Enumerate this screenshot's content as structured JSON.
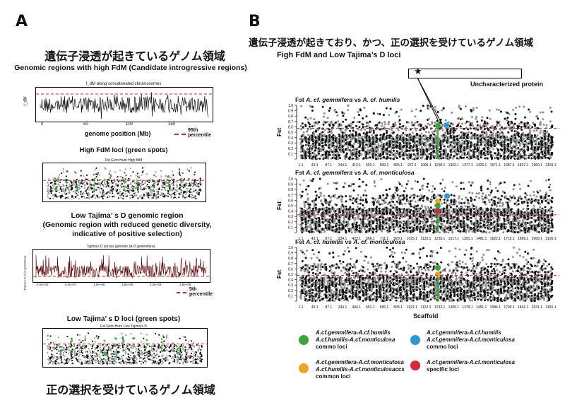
{
  "panelA": {
    "letter": "A",
    "jp_title_top": "遺伝子浸透が起きているゲノム領域",
    "en_sub_top": "Genomic regions with high FdM (Candidate introgressive regions)",
    "fdm_plot": {
      "title": "f_dM along concatenated chromosomes",
      "ylabel": "f_dM",
      "xlabel": "genome position (Mb)",
      "xticks": [
        "0",
        "50",
        "100",
        "150"
      ],
      "legend_label": "95th percentile"
    },
    "high_fdm_title": "High FdM loci (green spots)",
    "high_fdm_plot_title": "Fst Gem Hum High fdM",
    "low_tajima_title": "Low Tajima’ s D genomic region",
    "low_tajima_sub1": "(Genomic region with reduced genetic diversity,",
    "low_tajima_sub2": "indicative of positive selection)",
    "tajima_plot": {
      "title": "Tajima's D across genome (A.cf.gemmifera)",
      "ylabel": "Tajima's D (A.cf.gemmifera)",
      "xticks": [
        "0.0e+00",
        "5.0e+07",
        "1.0e+08",
        "1.5e+08",
        "2.0e+08",
        "2.5e+08"
      ],
      "legend_label": "5th percentile"
    },
    "low_tajima_loci_title": "Low Tajima’ s D loci (green spots)",
    "low_tajima_plot_title": "Fst Gem Hum Low Tajima's D",
    "jp_title_bottom": "正の選択を受けているゲノム領域"
  },
  "panelB": {
    "letter": "B",
    "jp_title": "遺伝子浸透が起きており、かつ、正の選択を受けているゲノム領域",
    "en_sub": "Figh FdM and Low Tajima’s D loci",
    "annotation": "Uncharacterized protein",
    "star": "★",
    "plots": [
      {
        "prefix": "Fst ",
        "sp1": "A. cf. gemmifera",
        "vs": " vs ",
        "sp2": "A. cf. humilis",
        "threshold": 0.57,
        "xticks": [
          "1.1",
          "43.1",
          "87.1",
          "244.1",
          "413.1",
          "552.1",
          "699.1",
          "825.1",
          "972.1",
          "1095.1",
          "1208.1",
          "1303.1",
          "1377.1",
          "1426.1",
          "1571.1",
          "1687.1",
          "1837.1",
          "1969.1",
          "2165.1"
        ]
      },
      {
        "prefix": "Fst ",
        "sp1": "A. cf. gemmifera",
        "vs": " vs ",
        "sp2": "A. cf. monticulosa",
        "threshold": 0.33,
        "xticks": [
          "1.1",
          "43.1",
          "87.1",
          "234.1",
          "423.1",
          "566.1",
          "711.1",
          "829.1",
          "1025.1",
          "1123.1",
          "1235.1",
          "1317.1",
          "1391.1",
          "1481.1",
          "1622.1",
          "1715.1",
          "1869.1",
          "2069.1",
          "2190.1"
        ]
      },
      {
        "prefix": "Fst ",
        "sp1": "A. cf. humilis",
        "vs": " vs ",
        "sp2": "A. cf. monticulosa",
        "threshold": 0.48,
        "xticks": [
          "1.1",
          "43.1",
          "87.1",
          "244.1",
          "404.1",
          "551.1",
          "695.1",
          "825.1",
          "1021.1",
          "1122.1",
          "1232.1",
          "1309.1",
          "1379.1",
          "1451.1",
          "1584.1",
          "1709.1",
          "1841.1",
          "2031.1",
          "2181.1"
        ]
      }
    ],
    "ylabel": "Fst",
    "yticks": [
      "0.0",
      "0.1",
      "0.2",
      "0.3",
      "0.4",
      "0.5",
      "0.6",
      "0.7",
      "0.8",
      "0.9",
      "1.0"
    ],
    "xlabel": "Scaffold",
    "legend": [
      {
        "color": "#3aa63a",
        "line1": "A.cf.gemmifera-A.cf.humilis",
        "line2": "A.cf.humilis-A.cf.monticulosa",
        "line3": "commo loci"
      },
      {
        "color": "#2a9ad6",
        "line1": "A.cf.gemmifera-A.cf.humilis",
        "line2": "A.cf.gemmifera-A.cf.monticulosa",
        "line3": "commo loci"
      },
      {
        "color": "#f2a51e",
        "line1": "A.cf.gemmifera-A.cf.monticulosa",
        "line2": "A.cf.humilis-A.cf.monticulosaccs",
        "line3": "common loci"
      },
      {
        "color": "#d8283a",
        "line1": "A.cf.gemmifera-A.cf.monticulosa",
        "line2": "specific loci",
        "line3": ""
      }
    ]
  }
}
